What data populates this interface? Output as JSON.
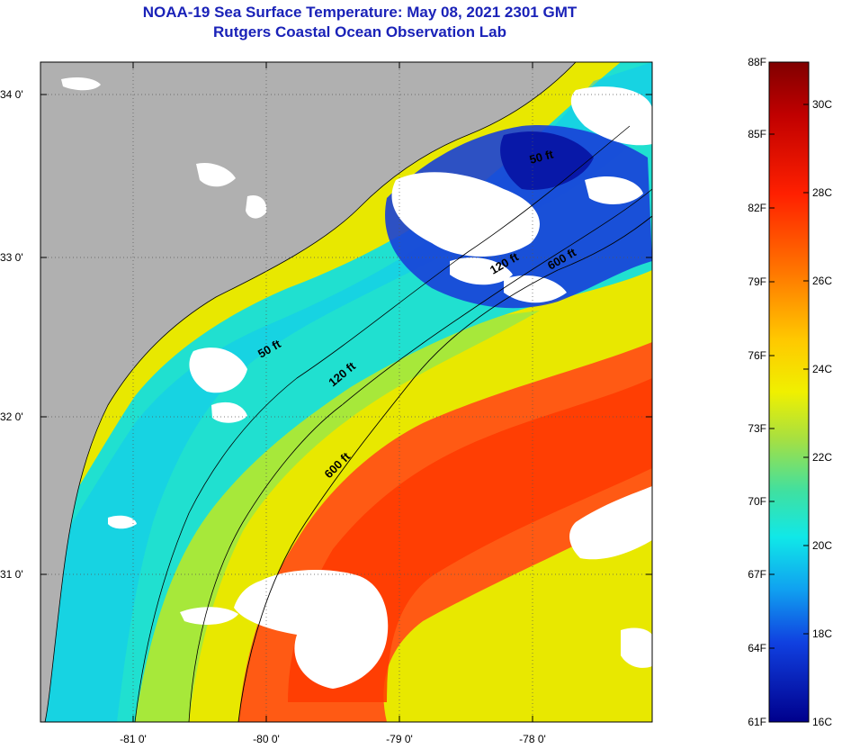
{
  "title": {
    "line1": "NOAA-19 Sea Surface Temperature:  May 08, 2021 2301 GMT",
    "line2": "Rutgers Coastal Ocean Observation Lab"
  },
  "axes": {
    "latitude_labels": [
      "34 0'",
      "33 0'",
      "32 0'",
      "31 0'"
    ],
    "longitude_labels": [
      "-81 0'",
      "-80 0'",
      "-79 0'",
      "-78 0'"
    ]
  },
  "contours": {
    "labels": [
      "50 ft",
      "120 ft",
      "600 ft",
      "50 ft",
      "120 ft",
      "600 ft"
    ]
  },
  "colorbar": {
    "fahrenheit_labels": [
      "88F",
      "85F",
      "82F",
      "79F",
      "76F",
      "73F",
      "70F",
      "67F",
      "64F",
      "61F"
    ],
    "celsius_labels": [
      "30C",
      "28C",
      "26C",
      "24C",
      "22C",
      "20C",
      "18C",
      "16C"
    ]
  },
  "colors": {
    "title": "#1a22b8",
    "land": "#b0b0b0",
    "cloud": "#ffffff"
  }
}
